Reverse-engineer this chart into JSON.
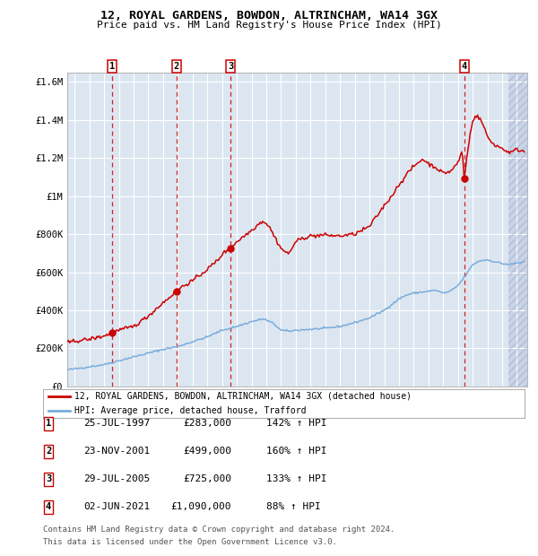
{
  "title": "12, ROYAL GARDENS, BOWDON, ALTRINCHAM, WA14 3GX",
  "subtitle": "Price paid vs. HM Land Registry's House Price Index (HPI)",
  "hpi_color": "#7aacdc",
  "price_color": "#cc0000",
  "bg_color": "#dce6f1",
  "ylim": [
    0,
    1650000
  ],
  "yticks": [
    0,
    200000,
    400000,
    600000,
    800000,
    1000000,
    1200000,
    1400000,
    1600000
  ],
  "ytick_labels": [
    "£0",
    "£200K",
    "£400K",
    "£600K",
    "£800K",
    "£1M",
    "£1.2M",
    "£1.4M",
    "£1.6M"
  ],
  "xlim_start": 1994.5,
  "xlim_end": 2025.7,
  "purchases": [
    {
      "label": "1",
      "year": 1997.56,
      "price": 283000,
      "date": "25-JUL-1997",
      "pct": "142%",
      "is_red_vline": true
    },
    {
      "label": "2",
      "year": 2001.9,
      "price": 499000,
      "date": "23-NOV-2001",
      "pct": "160%",
      "is_red_vline": true
    },
    {
      "label": "3",
      "year": 2005.57,
      "price": 725000,
      "date": "29-JUL-2005",
      "pct": "133%",
      "is_red_vline": true
    },
    {
      "label": "4",
      "year": 2021.42,
      "price": 1090000,
      "date": "02-JUN-2021",
      "pct": "88%",
      "is_red_vline": true
    }
  ],
  "legend1": "12, ROYAL GARDENS, BOWDON, ALTRINCHAM, WA14 3GX (detached house)",
  "legend2": "HPI: Average price, detached house, Trafford",
  "table": [
    {
      "num": "1",
      "date": "25-JUL-1997",
      "price": "£283,000",
      "pct": "142% ↑ HPI"
    },
    {
      "num": "2",
      "date": "23-NOV-2001",
      "price": "£499,000",
      "pct": "160% ↑ HPI"
    },
    {
      "num": "3",
      "date": "29-JUL-2005",
      "price": "£725,000",
      "pct": "133% ↑ HPI"
    },
    {
      "num": "4",
      "date": "02-JUN-2021",
      "price": "£1,090,000",
      "pct": "88% ↑ HPI"
    }
  ],
  "footer_line1": "Contains HM Land Registry data © Crown copyright and database right 2024.",
  "footer_line2": "This data is licensed under the Open Government Licence v3.0."
}
